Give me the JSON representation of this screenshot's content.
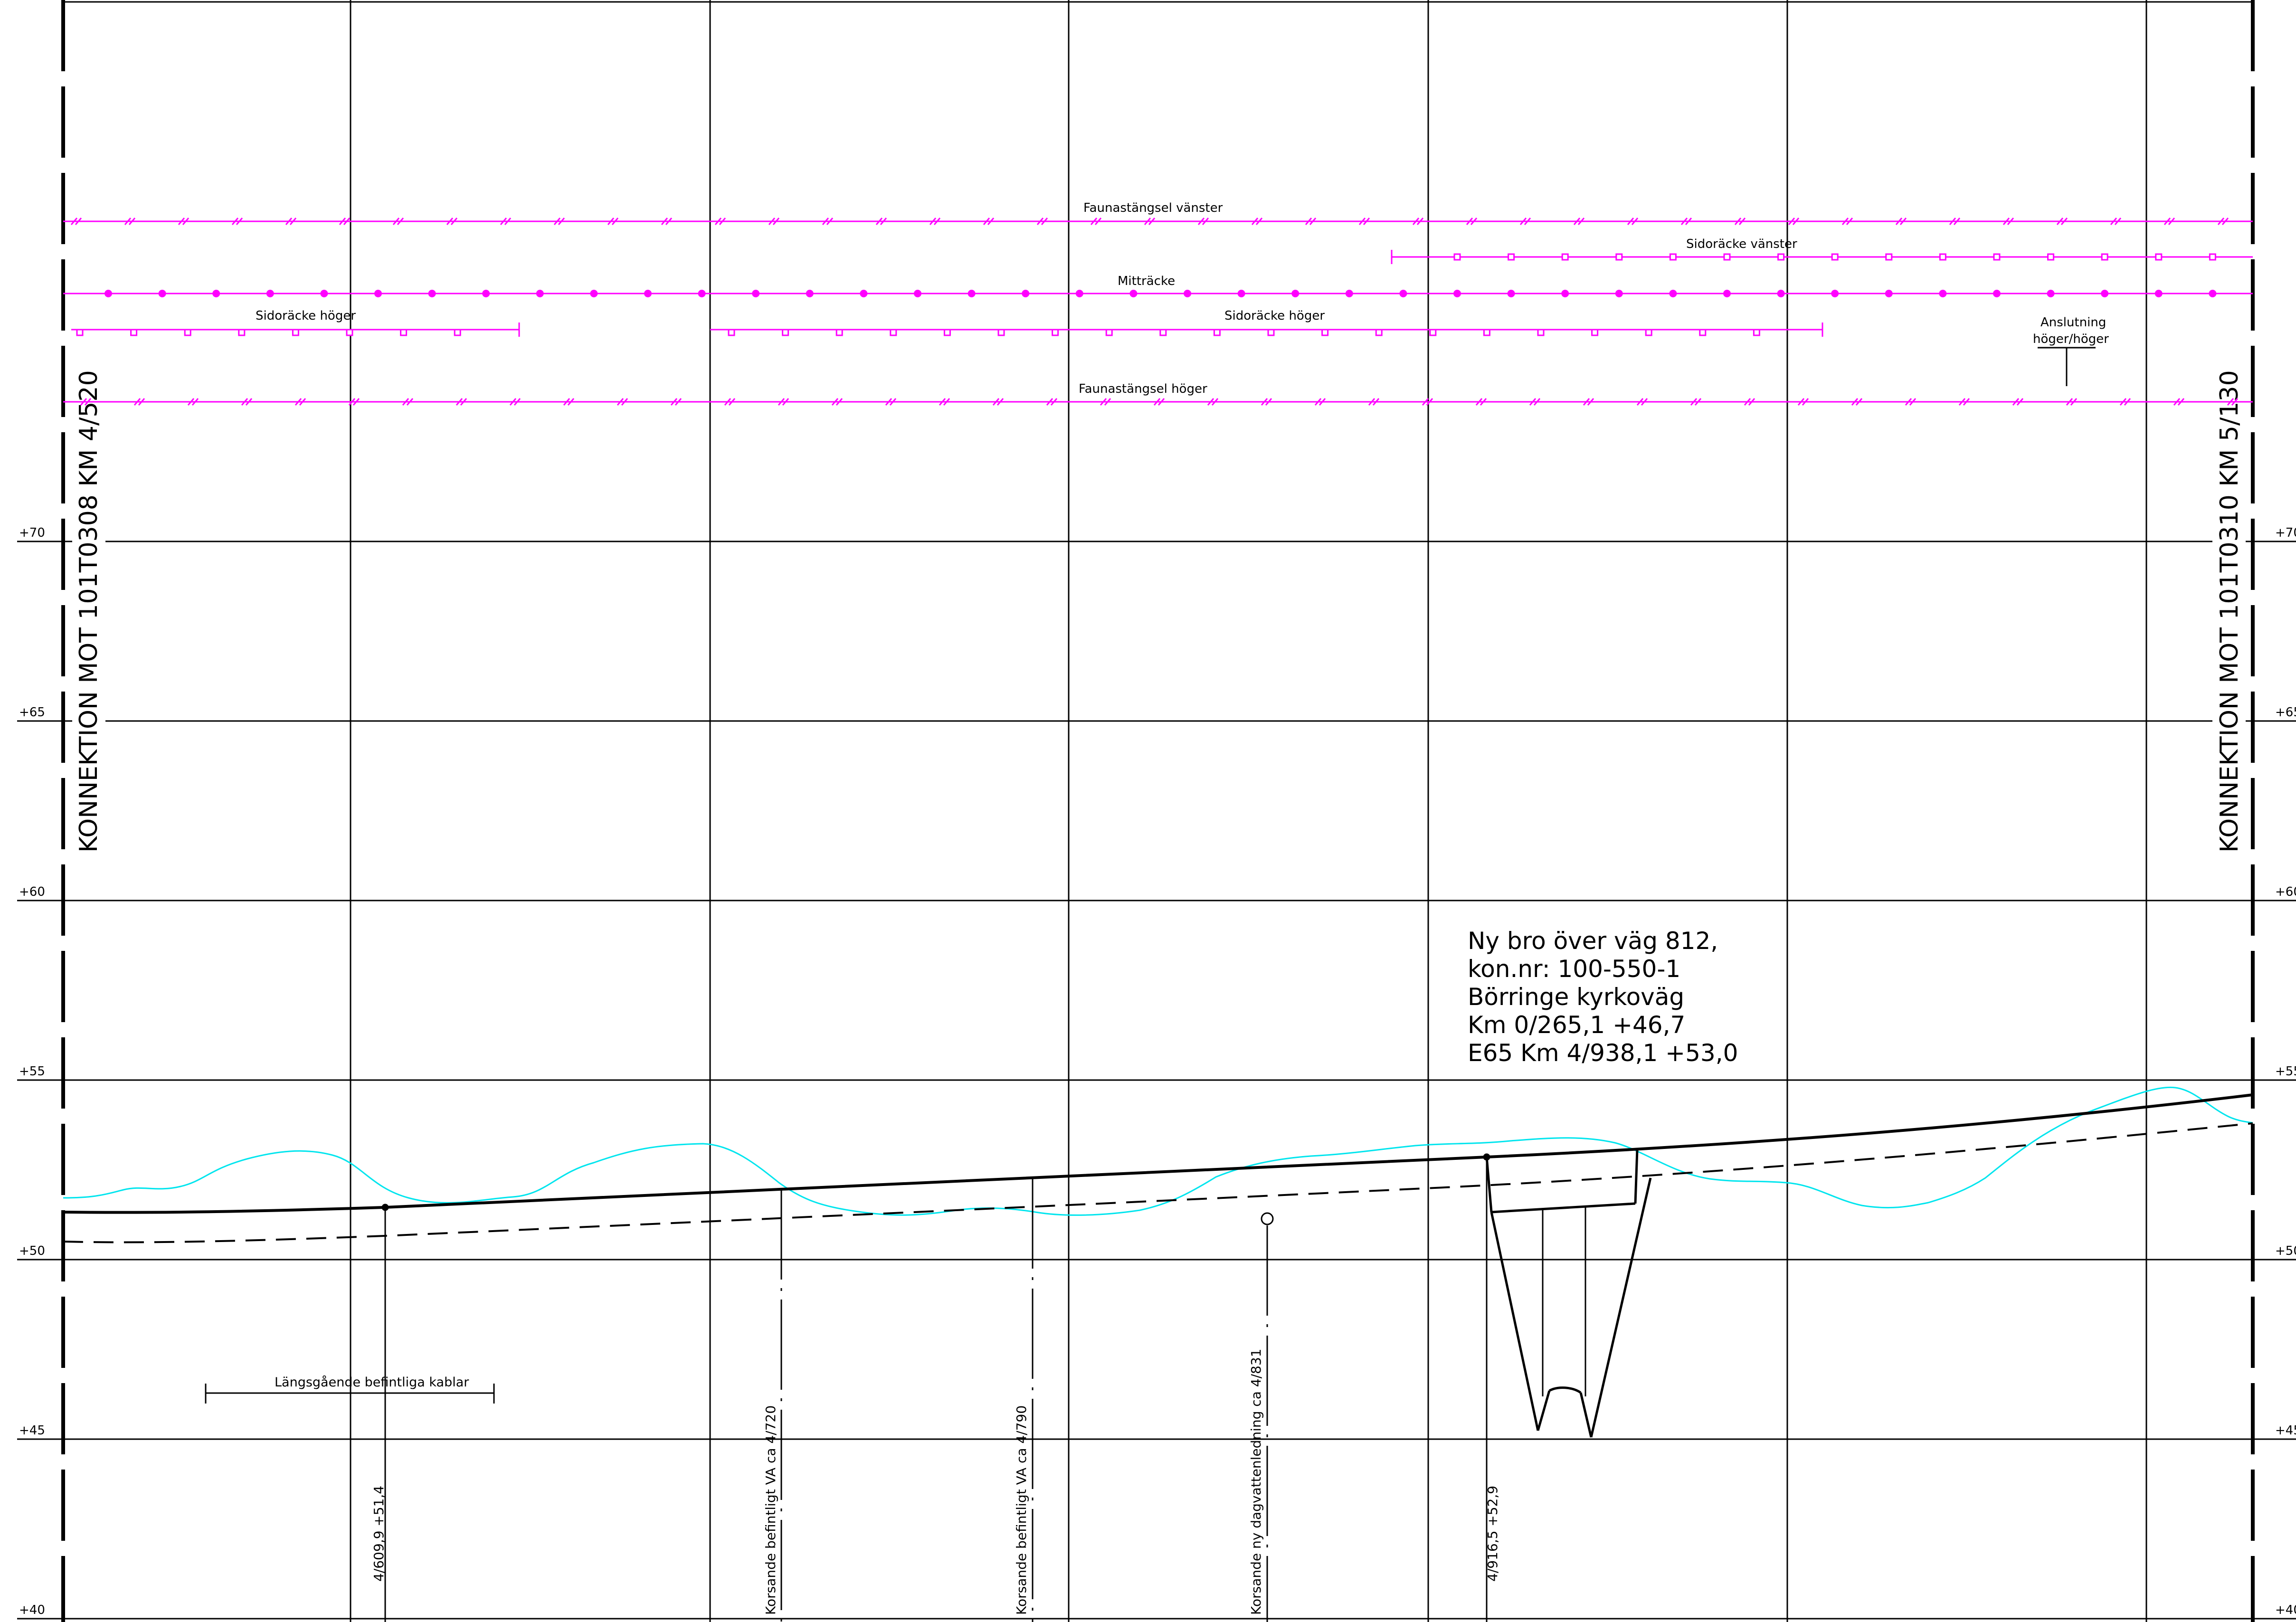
{
  "colors": {
    "line": "#000000",
    "magenta": "#ff00ff",
    "terrain": "#00e5ee"
  },
  "elevation_labels": [
    "+70",
    "+65",
    "+60",
    "+55",
    "+50",
    "+45",
    "+40"
  ],
  "elevation_values": [
    70,
    65,
    60,
    55,
    50,
    45,
    40
  ],
  "connection_left": "KONNEKTION MOT 101T0308 KM 4/520",
  "connection_right": "KONNEKTION MOT 101T0310 KM 5/130",
  "features": {
    "fauna_fence_left": "Faunastängsel vänster",
    "side_rail_left": "Sidoräcke vänster",
    "median_rail": "Mitträcke",
    "side_rail_right_1": "Sidoräcke höger",
    "side_rail_right_2": "Sidoräcke höger",
    "connection_rails_line1": "Anslutning",
    "connection_rails_line2": "höger/höger",
    "fauna_fence_right": "Faunastängsel höger"
  },
  "bridge_note": [
    "Ny bro över väg 812,",
    "kon.nr: 100-550-1",
    "Börringe kyrkoväg",
    "Km 0/265,1 +46,7",
    "E65 Km 4/938,1 +53,0"
  ],
  "cables_label": "Längsgående befintliga kablar",
  "crossing_labels": {
    "point_4609": "4/609,9 +51,4",
    "va_720": "Korsande befintligt VA ca 4/720",
    "va_790": "Korsande befintligt VA ca 4/790",
    "storm_831": "Korsande ny dagvattenledning ca 4/831",
    "point_4916": "4/916,5 +52,9"
  }
}
